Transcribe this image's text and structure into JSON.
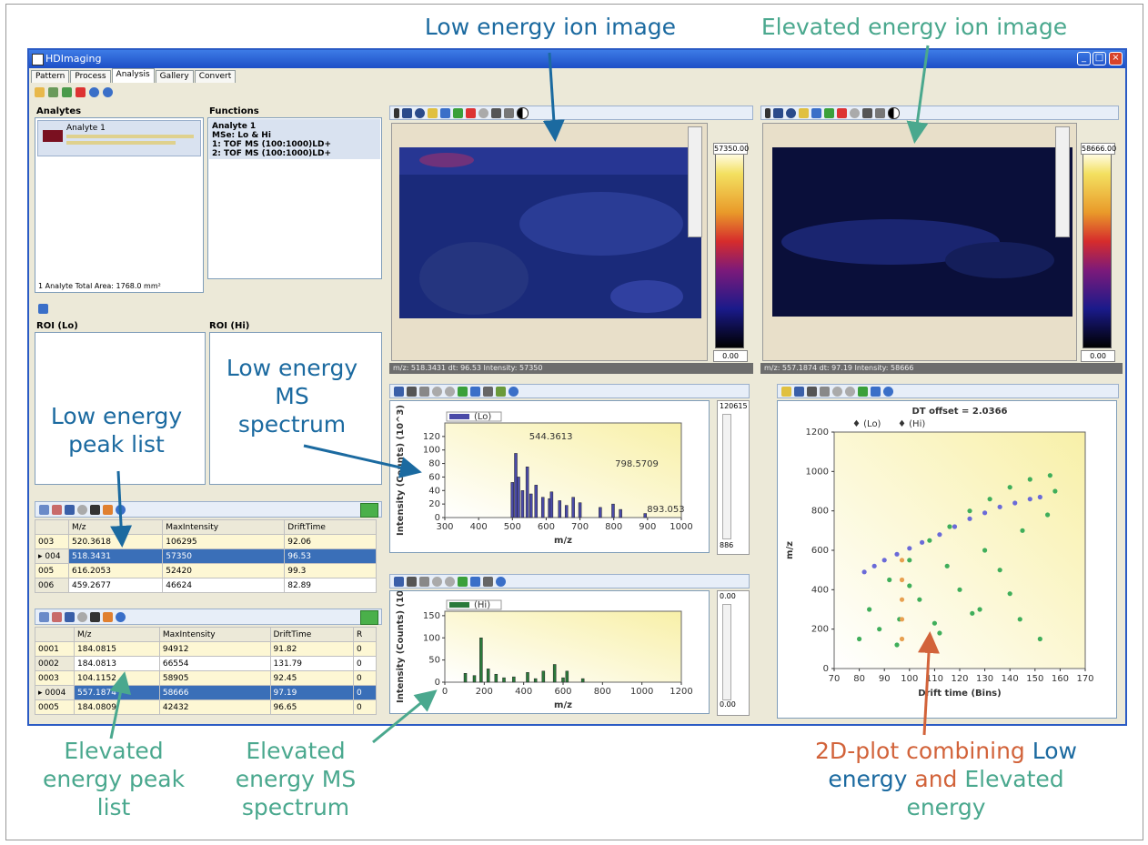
{
  "annotations": {
    "low_ion": "Low energy ion image",
    "elev_ion": "Elevated energy ion image",
    "low_ms": [
      "Low energy",
      "MS",
      "spectrum"
    ],
    "low_peak": [
      "Low energy",
      "peak list"
    ],
    "elev_peak": [
      "Elevated",
      "energy peak",
      "list"
    ],
    "elev_ms": [
      "Elevated",
      "energy MS",
      "spectrum"
    ],
    "plot2d": {
      "part1": "2D-plot combining ",
      "low": "Low",
      "part2": "energy",
      "and": " and ",
      "elevated": "Elevated",
      "part3": "energy"
    }
  },
  "window": {
    "title": "HDImaging"
  },
  "tabs": [
    "Pattern",
    "Process",
    "Analysis",
    "Gallery",
    "Convert"
  ],
  "analytes": {
    "header": "Analytes",
    "item": "Analyte 1",
    "footer": "1 Analyte   Total Area: 1768.0 mm²"
  },
  "functions": {
    "header": "Functions",
    "lines": [
      "Analyte 1",
      "MSe: Lo & Hi",
      "1: TOF MS (100:1000)LD+",
      "2: TOF MS (100:1000)LD+"
    ]
  },
  "roi": {
    "lo": "ROI (Lo)",
    "hi": "ROI (Hi)"
  },
  "low_peak_table": {
    "columns": [
      "M/z",
      "MaxIntensity",
      "DriftTime"
    ],
    "rows": [
      {
        "id": "003",
        "mz": "520.3618",
        "int": "106295",
        "dt": "92.06"
      },
      {
        "id": "004",
        "mz": "518.3431",
        "int": "57350",
        "dt": "96.53"
      },
      {
        "id": "005",
        "mz": "616.2053",
        "int": "52420",
        "dt": "99.3"
      },
      {
        "id": "006",
        "mz": "459.2677",
        "int": "46624",
        "dt": "82.89"
      }
    ]
  },
  "elev_peak_table": {
    "columns": [
      "M/z",
      "MaxIntensity",
      "DriftTime",
      "R"
    ],
    "rows": [
      {
        "id": "0001",
        "mz": "184.0815",
        "int": "94912",
        "dt": "91.82",
        "r": "0"
      },
      {
        "id": "0002",
        "mz": "184.0813",
        "int": "66554",
        "dt": "131.79",
        "r": "0"
      },
      {
        "id": "0003",
        "mz": "104.1152",
        "int": "58905",
        "dt": "92.45",
        "r": "0"
      },
      {
        "id": "0004",
        "mz": "557.1874",
        "int": "58666",
        "dt": "97.19",
        "r": "0"
      },
      {
        "id": "0005",
        "mz": "184.0809",
        "int": "42432",
        "dt": "96.65",
        "r": "0"
      }
    ]
  },
  "low_image": {
    "max": "57350.00",
    "min": "0.00",
    "status": "m/z: 518.3431  dt: 96.53  Intensity: 57350"
  },
  "elev_image": {
    "max": "58666.00",
    "min": "0.00",
    "status": "m/z: 557.1874  dt: 97.19  Intensity: 58666"
  },
  "low_spectrum": {
    "legend": "(Lo)",
    "ylabel": "Intensity (Counts) (10^3)",
    "xlabel": "m/z",
    "slider_top": "120615",
    "slider_bottom": "886",
    "peak_labels": [
      "544.3613",
      "798.5709",
      "893.053"
    ]
  },
  "elev_spectrum": {
    "legend": "(Hi)",
    "ylabel": "Intensity (Counts) (10",
    "xlabel": "m/z",
    "slider_top": "0.00",
    "slider_bottom": "0.00"
  },
  "plot2d": {
    "title": "DT offset = 2.0366",
    "legend_lo": "(Lo)",
    "legend_hi": "(Hi)",
    "ylabel": "m/z",
    "xlabel": "Drift time (Bins)"
  },
  "chart_data": [
    {
      "type": "bar",
      "name": "low-energy-ms-spectrum",
      "x": [
        500,
        510,
        518,
        530,
        544,
        555,
        570,
        590,
        610,
        616,
        640,
        660,
        680,
        700,
        760,
        798,
        820,
        893
      ],
      "values": [
        52,
        95,
        60,
        40,
        75,
        35,
        48,
        30,
        28,
        38,
        25,
        18,
        30,
        22,
        15,
        20,
        12,
        6
      ],
      "xlabel": "m/z",
      "ylabel": "Intensity (Counts) (10^3)",
      "xlim": [
        300,
        1000
      ],
      "ylim": [
        0,
        140
      ],
      "xticks": [
        300,
        400,
        500,
        600,
        700,
        800,
        900,
        1000
      ],
      "yticks": [
        0,
        20,
        40,
        60,
        80,
        100,
        120
      ]
    },
    {
      "type": "bar",
      "name": "elevated-energy-ms-spectrum",
      "x": [
        104,
        150,
        184,
        220,
        260,
        300,
        350,
        420,
        460,
        500,
        557,
        600,
        620,
        700
      ],
      "values": [
        20,
        15,
        100,
        30,
        18,
        10,
        12,
        22,
        8,
        25,
        40,
        10,
        25,
        8
      ],
      "xlabel": "m/z",
      "ylabel": "Intensity (Counts) (10",
      "xlim": [
        0,
        1200
      ],
      "ylim": [
        0,
        160
      ],
      "xticks": [
        0,
        200,
        400,
        600,
        800,
        1000,
        1200
      ],
      "yticks": [
        0,
        50,
        100,
        150
      ]
    },
    {
      "type": "scatter",
      "name": "drift-time-2d-plot",
      "title": "DT offset = 2.0366",
      "xlabel": "Drift time (Bins)",
      "ylabel": "m/z",
      "xlim": [
        70,
        170
      ],
      "ylim": [
        0,
        1200
      ],
      "xticks": [
        70,
        80,
        90,
        100,
        110,
        120,
        130,
        140,
        150,
        160,
        170
      ],
      "yticks": [
        0,
        200,
        400,
        600,
        800,
        1000,
        1200
      ],
      "series": [
        {
          "name": "(Lo)",
          "color": "#6a6ad8",
          "x": [
            82,
            86,
            90,
            95,
            100,
            105,
            112,
            118,
            124,
            130,
            136,
            142,
            148,
            152
          ],
          "y": [
            490,
            520,
            550,
            580,
            610,
            640,
            680,
            720,
            760,
            790,
            820,
            840,
            860,
            870
          ]
        },
        {
          "name": "(Hi)",
          "color": "#3fae5a",
          "x": [
            80,
            84,
            88,
            92,
            96,
            100,
            104,
            108,
            112,
            116,
            120,
            124,
            128,
            132,
            136,
            140,
            144,
            148,
            152,
            156,
            158,
            95,
            110,
            125,
            140,
            100,
            115,
            130,
            145,
            155
          ],
          "y": [
            150,
            300,
            200,
            450,
            250,
            550,
            350,
            650,
            180,
            720,
            400,
            800,
            300,
            860,
            500,
            920,
            250,
            960,
            150,
            980,
            900,
            120,
            230,
            280,
            380,
            420,
            520,
            600,
            700,
            780
          ]
        },
        {
          "name": "highlight",
          "color": "#e8a050",
          "x": [
            97,
            97,
            97,
            97,
            97
          ],
          "y": [
            150,
            250,
            350,
            450,
            550
          ]
        }
      ]
    }
  ]
}
